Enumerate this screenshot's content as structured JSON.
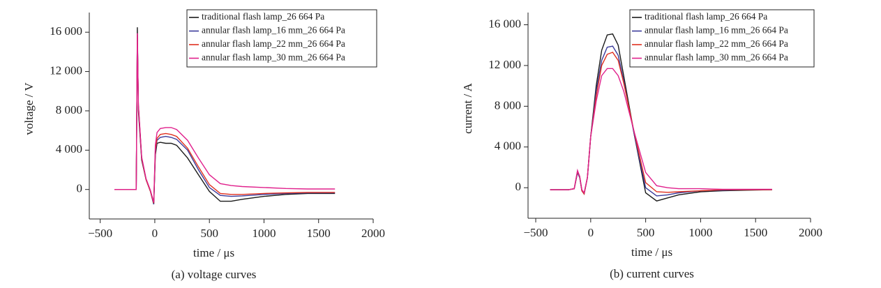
{
  "chart_data": [
    {
      "type": "line",
      "caption": "(a) voltage curves",
      "xlabel": "time / μs",
      "ylabel": "voltage / V",
      "x": [
        -370,
        -170,
        -165,
        -160,
        -150,
        -120,
        -80,
        -40,
        -10,
        5,
        20,
        50,
        100,
        150,
        200,
        300,
        400,
        500,
        600,
        700,
        800,
        1000,
        1200,
        1400,
        1650
      ],
      "series": [
        {
          "name": "traditional flash lamp_26 664 Pa",
          "color": "#1a1a1a",
          "values": [
            0,
            0,
            8000,
            16500,
            8000,
            3000,
            1000,
            -200,
            -1500,
            3500,
            4700,
            4800,
            4700,
            4700,
            4500,
            3200,
            1500,
            -200,
            -1200,
            -1200,
            -1000,
            -700,
            -500,
            -400,
            -400
          ]
        },
        {
          "name": "annular flash lamp_16 mm_26 664 Pa",
          "color": "#3a3a9a",
          "values": [
            0,
            0,
            8000,
            15800,
            8500,
            3200,
            1000,
            -200,
            -1500,
            3800,
            5000,
            5300,
            5400,
            5300,
            5100,
            4000,
            2000,
            200,
            -600,
            -700,
            -650,
            -500,
            -400,
            -350,
            -350
          ]
        },
        {
          "name": "annular flash lamp_22 mm_26 664 Pa",
          "color": "#e03020",
          "values": [
            0,
            0,
            8000,
            15800,
            8500,
            3200,
            1000,
            -200,
            -1400,
            4000,
            5200,
            5600,
            5700,
            5600,
            5400,
            4200,
            2300,
            500,
            -400,
            -500,
            -500,
            -400,
            -350,
            -300,
            -300
          ]
        },
        {
          "name": "annular flash lamp_30 mm_26 664 Pa",
          "color": "#e0208c",
          "values": [
            0,
            0,
            8000,
            15900,
            8700,
            3300,
            1100,
            -100,
            -1300,
            4500,
            5800,
            6200,
            6300,
            6300,
            6100,
            5000,
            3200,
            1500,
            600,
            400,
            300,
            200,
            100,
            50,
            50
          ]
        }
      ],
      "xlim": [
        -600,
        2000
      ],
      "xticks": [
        {
          "value": -500,
          "label": "−500"
        },
        0,
        500,
        1000,
        1500,
        2000
      ],
      "ylim": [
        -3000,
        18000
      ],
      "yticks": [
        0,
        {
          "value": 4000,
          "label": "4 000"
        },
        {
          "value": 8000,
          "label": "8 000"
        },
        {
          "value": 12000,
          "label": "12 000"
        },
        {
          "value": 16000,
          "label": "16 000"
        }
      ],
      "legend": "upper right"
    },
    {
      "type": "line",
      "caption": "(b) current curves",
      "xlabel": "time / μs",
      "ylabel": "current / A",
      "x": [
        -370,
        -200,
        -150,
        -120,
        -100,
        -80,
        -60,
        -30,
        0,
        50,
        100,
        150,
        200,
        250,
        300,
        400,
        500,
        600,
        700,
        800,
        1000,
        1200,
        1400,
        1650
      ],
      "series": [
        {
          "name": "traditional flash lamp_26 664 Pa",
          "color": "#1a1a1a",
          "values": [
            -200,
            -200,
            -100,
            1500,
            1000,
            -300,
            -600,
            1000,
            5000,
            10000,
            13500,
            15000,
            15100,
            14000,
            11000,
            5000,
            -500,
            -1300,
            -1000,
            -700,
            -400,
            -300,
            -250,
            -200
          ]
        },
        {
          "name": "annular flash lamp_16 mm_26 664 Pa",
          "color": "#3a3a9a",
          "values": [
            -200,
            -200,
            -100,
            1500,
            1000,
            -300,
            -600,
            1000,
            5000,
            9500,
            12500,
            13800,
            13900,
            13000,
            10500,
            5000,
            0,
            -800,
            -700,
            -500,
            -300,
            -250,
            -200,
            -200
          ]
        },
        {
          "name": "annular flash lamp_22 mm_26 664 Pa",
          "color": "#e03020",
          "values": [
            -200,
            -200,
            -100,
            1600,
            1100,
            -300,
            -600,
            1000,
            5000,
            9000,
            12000,
            13100,
            13300,
            12500,
            10300,
            5200,
            500,
            -400,
            -450,
            -400,
            -300,
            -200,
            -200,
            -200
          ]
        },
        {
          "name": "annular flash lamp_30 mm_26 664 Pa",
          "color": "#e0208c",
          "values": [
            -200,
            -200,
            -100,
            1700,
            1100,
            -200,
            -500,
            1000,
            5000,
            8500,
            11000,
            11700,
            11700,
            11000,
            9500,
            5300,
            1500,
            200,
            0,
            -100,
            -100,
            -150,
            -150,
            -150
          ]
        }
      ],
      "xlim": [
        -570,
        2000
      ],
      "xticks": [
        {
          "value": -500,
          "label": "−500"
        },
        0,
        500,
        1000,
        1500,
        2000
      ],
      "ylim": [
        -3000,
        17200
      ],
      "yticks": [
        0,
        {
          "value": 4000,
          "label": "4 000"
        },
        {
          "value": 8000,
          "label": "8 000"
        },
        {
          "value": 12000,
          "label": "12 000"
        },
        {
          "value": 16000,
          "label": "16 000"
        }
      ],
      "legend": "upper right"
    }
  ]
}
